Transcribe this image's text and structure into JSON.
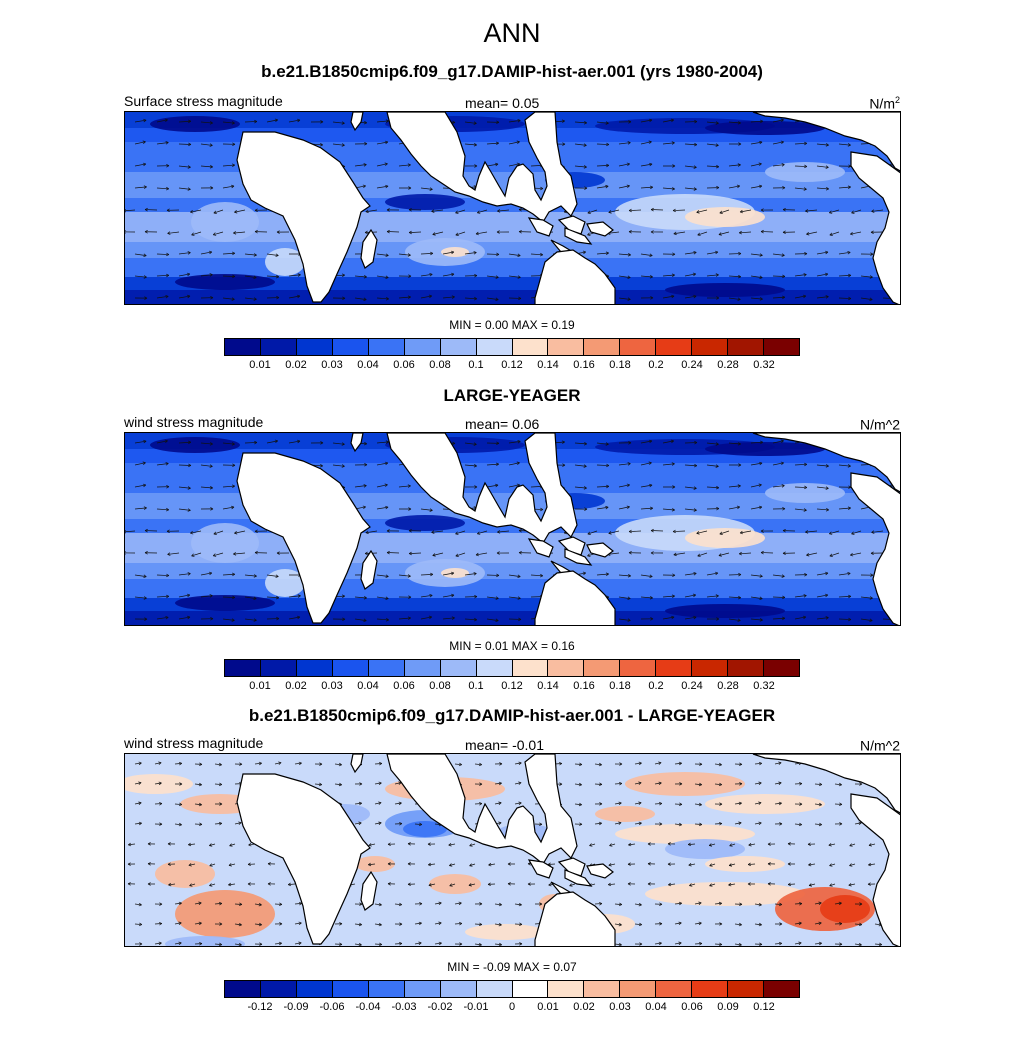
{
  "main_title": "ANN",
  "colors": {
    "land": "#ffffff",
    "abs_palette": [
      "#000a8c",
      "#0019a8",
      "#0036d0",
      "#1a54ee",
      "#3a73f5",
      "#6f9bf7",
      "#9dbaf8",
      "#c9dafa",
      "#fde1cc",
      "#f9bda0",
      "#f49a74",
      "#ee6540",
      "#e63c16",
      "#c92700",
      "#a11500",
      "#7a0000"
    ],
    "diff_palette": [
      "#000a8c",
      "#0019a8",
      "#0036d0",
      "#1a54ee",
      "#3a73f5",
      "#6f9bf7",
      "#9dbaf8",
      "#c9dafa",
      "#ffffff",
      "#fde1cc",
      "#f9bda0",
      "#f49a74",
      "#ee6540",
      "#e63c16",
      "#c92700",
      "#7a0000"
    ]
  },
  "panels": [
    {
      "title": "b.e21.B1850cmip6.f09_g17.DAMIP-hist-aer.001 (yrs 1980-2004)",
      "left_label": "Surface stress magnitude",
      "mean_label": "mean=   0.05",
      "units_base": "N/m",
      "units_sup": "2",
      "minmax": "MIN =   0.00 MAX =   0.19",
      "ticks": [
        "0.01",
        "0.02",
        "0.03",
        "0.04",
        "0.06",
        "0.08",
        "0.1",
        "0.12",
        "0.14",
        "0.16",
        "0.18",
        "0.2",
        "0.24",
        "0.28",
        "0.32"
      ],
      "type": "abs"
    },
    {
      "title": "LARGE-YEAGER",
      "left_label": "wind stress magnitude",
      "mean_label": "mean=   0.06",
      "units_base": "N/m^2",
      "units_sup": "",
      "minmax": "MIN =   0.01 MAX =   0.16",
      "ticks": [
        "0.01",
        "0.02",
        "0.03",
        "0.04",
        "0.06",
        "0.08",
        "0.1",
        "0.12",
        "0.14",
        "0.16",
        "0.18",
        "0.2",
        "0.24",
        "0.28",
        "0.32"
      ],
      "type": "abs"
    },
    {
      "title": "b.e21.B1850cmip6.f09_g17.DAMIP-hist-aer.001 - LARGE-YEAGER",
      "left_label": "wind stress magnitude",
      "mean_label": "mean=  -0.01",
      "units_base": "N/m^2",
      "units_sup": "",
      "minmax": "MIN =  -0.09 MAX =   0.07",
      "ticks": [
        "-0.12",
        "-0.09",
        "-0.06",
        "-0.04",
        "-0.03",
        "-0.02",
        "-0.01",
        "0",
        "0.01",
        "0.02",
        "0.03",
        "0.04",
        "0.06",
        "0.09",
        "0.12"
      ],
      "type": "diff"
    }
  ]
}
